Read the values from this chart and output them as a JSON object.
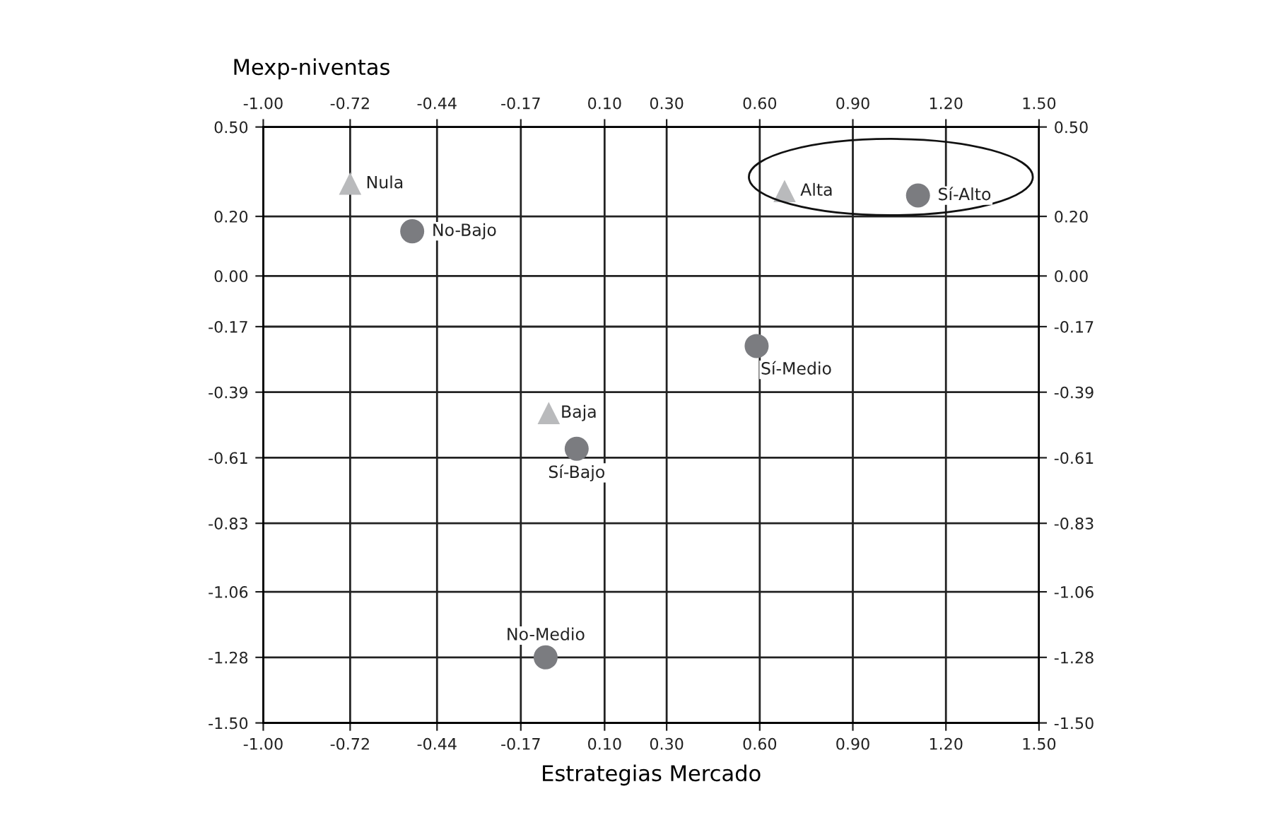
{
  "chart_data": {
    "type": "scatter",
    "xlabel": "Estrategias Mercado",
    "ylabel": "Mexp-niventas",
    "series": [
      {
        "color": "#b9babc",
        "marker": "triangle",
        "x": [
          -0.72,
          0.68,
          -0.08
        ],
        "values": [
          0.31,
          0.285,
          -0.46
        ]
      },
      {
        "color": "#7b7c80",
        "marker": "circle",
        "x": [
          -0.52,
          1.11,
          0.59,
          0.01,
          -0.09
        ],
        "values": [
          0.15,
          0.27,
          -0.235,
          -0.58,
          -1.28
        ]
      }
    ],
    "annotations": [
      {
        "text": "Nula",
        "x": -0.72,
        "y": 0.31
      },
      {
        "text": "Alta",
        "x": 0.68,
        "y": 0.285
      },
      {
        "text": "Baja",
        "x": -0.08,
        "y": -0.46
      },
      {
        "text": "No-Bajo",
        "x": -0.52,
        "y": 0.15
      },
      {
        "text": "Sí-Alto",
        "x": 1.11,
        "y": 0.27
      },
      {
        "text": "Sí-Medio",
        "x": 0.59,
        "y": -0.235
      },
      {
        "text": "Sí-Bajo",
        "x": 0.01,
        "y": -0.58
      },
      {
        "text": "No-Medio",
        "x": -0.09,
        "y": -1.28
      }
    ],
    "xlim": [
      -1.0,
      1.5
    ],
    "xticks": [
      {
        "value": -1.0,
        "label": "-1.00"
      },
      -0.72,
      -0.44,
      -0.17,
      {
        "value": 0.1,
        "label": "0.10"
      },
      {
        "value": 0.3,
        "label": "0.30"
      },
      {
        "value": 0.6,
        "label": "0.60"
      },
      {
        "value": 0.9,
        "label": "0.90"
      },
      {
        "value": 1.2,
        "label": "1.20"
      },
      {
        "value": 1.5,
        "label": "1.50"
      }
    ],
    "x2lim": [
      -1.0,
      1.5
    ],
    "x2ticks": [
      {
        "value": -1.0,
        "label": "-1.00"
      },
      -0.72,
      -0.44,
      -0.17,
      {
        "value": 0.1,
        "label": "0.10"
      },
      {
        "value": 0.3,
        "label": "0.30"
      },
      {
        "value": 0.6,
        "label": "0.60"
      },
      {
        "value": 0.9,
        "label": "0.90"
      },
      {
        "value": 1.2,
        "label": "1.20"
      },
      {
        "value": 1.5,
        "label": "1.50"
      }
    ],
    "ylim": [
      -1.5,
      0.5
    ],
    "yticks": [
      {
        "value": -1.5,
        "label": "-1.50"
      },
      -1.28,
      -1.06,
      -0.83,
      -0.61,
      -0.39,
      -0.17,
      {
        "value": 0.0,
        "label": "0.00"
      },
      {
        "value": 0.2,
        "label": "0.20"
      },
      {
        "value": 0.5,
        "label": "0.50"
      }
    ],
    "y2lim": [
      -1.5,
      0.5
    ],
    "y2ticks": [
      {
        "value": -1.5,
        "label": "-1.50"
      },
      -1.28,
      -1.06,
      -0.83,
      -0.61,
      -0.39,
      -0.17,
      {
        "value": 0.0,
        "label": "0.00"
      },
      {
        "value": 0.2,
        "label": "0.20"
      },
      {
        "value": 0.5,
        "label": "0.50"
      }
    ],
    "grid": true,
    "legend": false
  }
}
